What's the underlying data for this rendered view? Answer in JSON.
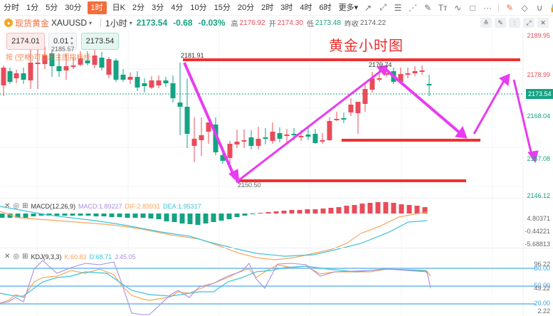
{
  "timeframes": [
    {
      "label": "分时",
      "active": false
    },
    {
      "label": "1分",
      "active": false
    },
    {
      "label": "5分",
      "active": false
    },
    {
      "label": "30分",
      "active": false
    },
    {
      "label": "1时",
      "active": true
    },
    {
      "label": "日K",
      "active": false
    },
    {
      "label": "2分",
      "active": false
    },
    {
      "label": "3分",
      "active": false
    },
    {
      "label": "4分",
      "active": false
    },
    {
      "label": "10分",
      "active": false
    },
    {
      "label": "15分",
      "active": false
    },
    {
      "label": "20分",
      "active": false
    },
    {
      "label": "2时",
      "active": false
    },
    {
      "label": "3时",
      "active": false
    },
    {
      "label": "4时",
      "active": false
    },
    {
      "label": "6时",
      "active": false
    },
    {
      "label": "更多▾",
      "active": false
    }
  ],
  "drawing_tools": [
    {
      "name": "ray-line-icon",
      "glyph": "↗"
    },
    {
      "name": "extended-line-icon",
      "glyph": "⤢"
    },
    {
      "name": "price-range-icon",
      "glyph": "☰"
    },
    {
      "name": "fan-icon",
      "glyph": "⋰"
    },
    {
      "name": "brush-icon",
      "glyph": "✎"
    },
    {
      "name": "text-icon",
      "glyph": "Tт"
    },
    {
      "name": "wave-icon",
      "glyph": "∿"
    },
    {
      "name": "rectangle-icon",
      "glyph": "□"
    },
    {
      "name": "more-icon",
      "glyph": "···"
    }
  ],
  "edit_tools": [
    {
      "name": "edit-drawing-icon",
      "glyph": "✎",
      "accent": true
    },
    {
      "name": "eraser-icon",
      "glyph": "◇",
      "accent": false
    },
    {
      "name": "magnet-icon",
      "glyph": "∪",
      "accent": false
    },
    {
      "name": "lock-icon",
      "glyph": "🔓",
      "accent": false
    },
    {
      "name": "eye-icon",
      "glyph": "◉",
      "accent": false
    },
    {
      "name": "trash-icon",
      "glyph": "🗑",
      "accent": false
    }
  ],
  "symbol": {
    "name_cn": "现货黄金",
    "code": "XAUUSD",
    "interval": "1小时",
    "last": "2173.54",
    "change": "-0.68",
    "change_pct": "-0.03%",
    "high_label": "高",
    "high": "2176.92",
    "open_label": "开",
    "open": "2174.30",
    "low_label": "低",
    "low": "2173.48",
    "prev_close_label": "昨收",
    "prev_close": "2174.22"
  },
  "panel_buttons": [
    {
      "name": "indicator-button",
      "glyph": "≙"
    },
    {
      "name": "draw-button",
      "glyph": "✎"
    },
    {
      "name": "candle-type-button",
      "glyph": "⫶"
    },
    {
      "name": "fullscreen-button",
      "glyph": "⤢"
    },
    {
      "name": "close-button",
      "glyph": "✕"
    }
  ],
  "trade": {
    "sell_price": "2174.01",
    "quantity": "0.01",
    "buy_price": "2173.54",
    "hint": "按 (空格)可显示主图指标线"
  },
  "chart": {
    "title": "黄金小时图",
    "current_price_tag": "2173.54",
    "annotations": {
      "prior_high": "2185.57",
      "high": "2181.91",
      "low": "2150.50",
      "recent_high": "2179.74"
    },
    "y_axis": [
      {
        "value": "2189.95",
        "color": "red"
      },
      {
        "value": "2178.99",
        "color": "red"
      },
      {
        "value": "2168.04",
        "color": "green"
      },
      {
        "value": "2157.08",
        "color": "green"
      },
      {
        "value": "2146.12",
        "color": "green"
      }
    ]
  },
  "macd": {
    "name": "MACD(12,26,9)",
    "macd_label": "MACD:1.89227",
    "dif_label": "DIF:2.89931",
    "dea_label": "DEA:1.95317",
    "y_axis": [
      "4.80371",
      "-0.44221",
      "-5.68813"
    ]
  },
  "kdj": {
    "name": "KDJ(9,3,3)",
    "k_label": "K:60.83",
    "d_label": "D:68.71",
    "j_label": "J:45.05",
    "y_axis": {
      "max": "96.22",
      "upper": "80.00",
      "mid_a": "50.00",
      "mid_b": "49.22",
      "lower": "20.00",
      "min": "2.22"
    }
  },
  "colors": {
    "accent": "#f26d3d",
    "up": "#e84c5a",
    "down": "#14a383",
    "annotation_line": "#f23030",
    "arrow": "#e83cf0"
  }
}
